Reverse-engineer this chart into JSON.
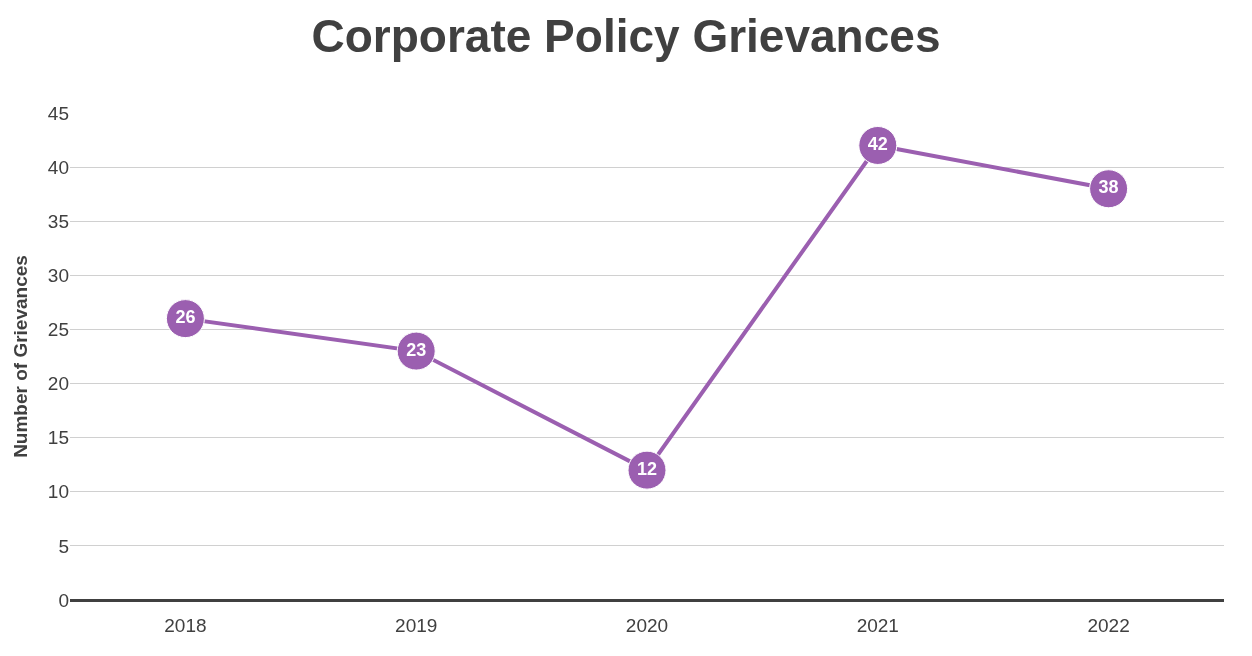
{
  "chart_data": {
    "type": "line",
    "title": "Corporate Policy Grievances",
    "ylabel": "Number of Grievances",
    "categories": [
      "2018",
      "2019",
      "2020",
      "2021",
      "2022"
    ],
    "series": [
      {
        "color": "#9b5fb0",
        "values": [
          26,
          23,
          12,
          42,
          38
        ]
      }
    ],
    "ylim": [
      0,
      45
    ],
    "yticks": [
      0,
      5,
      10,
      15,
      20,
      25,
      30,
      35,
      40,
      45
    ],
    "grid": "y",
    "marker": "circle",
    "line_style": "solid",
    "data_labels": true
  }
}
